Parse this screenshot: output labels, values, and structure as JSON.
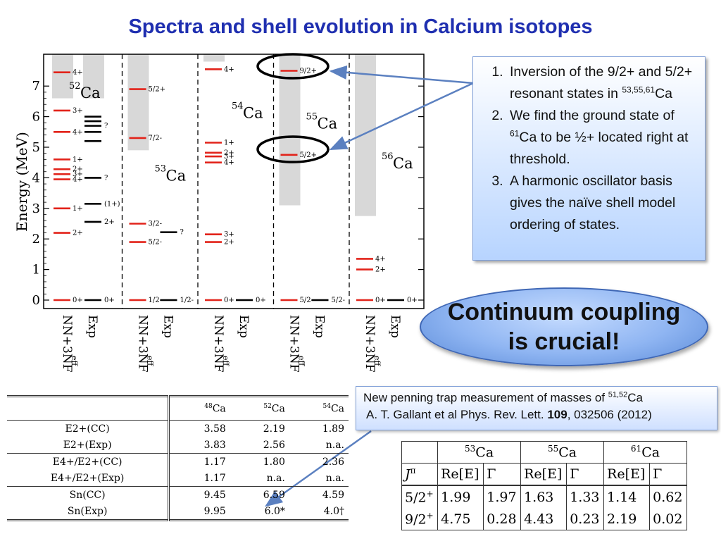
{
  "page_title": "Spectra and shell evolution in Calcium isotopes",
  "chart_data": {
    "type": "level-scheme",
    "ylabel": "Energy (MeV)",
    "ylim": [
      0,
      7.8
    ],
    "yticks": [
      "0",
      "1",
      "2",
      "3",
      "4",
      "5",
      "6",
      "7"
    ],
    "method_labels": [
      "NN+3NF",
      "eff",
      "Exp"
    ],
    "panels": [
      {
        "nucleus_mass": "52",
        "nucleus_symbol": "Ca",
        "label_energy": 6.7,
        "continuum": {
          "theory": 6.6,
          "exp": 6.6
        },
        "theory": [
          {
            "E": 0,
            "label": "0+"
          },
          {
            "E": 2.2,
            "label": "2+"
          },
          {
            "E": 3.0,
            "label": "1+"
          },
          {
            "E": 3.95,
            "label": "4+"
          },
          {
            "E": 4.12,
            "label": "3+"
          },
          {
            "E": 4.28,
            "label": "2+"
          },
          {
            "E": 4.6,
            "label": "1+"
          },
          {
            "E": 5.5,
            "label": "4+"
          },
          {
            "E": 6.2,
            "label": "3+"
          },
          {
            "E": 7.45,
            "label": "4+"
          }
        ],
        "exp": [
          {
            "E": 0,
            "label": "0+"
          },
          {
            "E": 2.56,
            "label": "2+"
          },
          {
            "E": 3.15,
            "label": "(1+)"
          },
          {
            "E": 4.0,
            "label": "?"
          },
          {
            "E": 5.2,
            "label": ""
          },
          {
            "E": 5.5,
            "label": ""
          },
          {
            "E": 5.7,
            "label": "?"
          },
          {
            "E": 5.85,
            "label": ""
          },
          {
            "E": 6.0,
            "label": ""
          }
        ]
      },
      {
        "nucleus_mass": "53",
        "nucleus_symbol": "Ca",
        "label_energy": 4.0,
        "continuum": {
          "theory": 4.9
        },
        "theory": [
          {
            "E": 0,
            "label": "1/2-"
          },
          {
            "E": 1.9,
            "label": "5/2-"
          },
          {
            "E": 2.5,
            "label": "3/2-"
          },
          {
            "E": 5.3,
            "label": "7/2-"
          },
          {
            "E": 6.9,
            "label": "5/2+"
          }
        ],
        "exp": [
          {
            "E": 0,
            "label": "1/2-"
          },
          {
            "E": 2.22,
            "label": "?"
          }
        ]
      },
      {
        "nucleus_mass": "54",
        "nucleus_symbol": "Ca",
        "label_energy": 6.05,
        "continuum": {
          "theory": 7.8
        },
        "theory": [
          {
            "E": 0,
            "label": "0+"
          },
          {
            "E": 1.9,
            "label": "2+"
          },
          {
            "E": 2.15,
            "label": "3+"
          },
          {
            "E": 4.5,
            "label": "4+"
          },
          {
            "E": 4.7,
            "label": "3+"
          },
          {
            "E": 4.82,
            "label": "2+"
          },
          {
            "E": 5.15,
            "label": "1+"
          },
          {
            "E": 7.55,
            "label": "4+"
          }
        ],
        "exp": [
          {
            "E": 0,
            "label": "0+"
          }
        ]
      },
      {
        "nucleus_mass": "55",
        "nucleus_symbol": "Ca",
        "label_energy": 5.7,
        "continuum": {
          "theory": 3.1
        },
        "theory": [
          {
            "E": 0,
            "label": "5/2-"
          },
          {
            "E": 4.75,
            "label": "5/2+"
          },
          {
            "E": 7.5,
            "label": "9/2+"
          }
        ],
        "exp": [
          {
            "E": 0,
            "label": "5/2-"
          }
        ]
      },
      {
        "nucleus_mass": "56",
        "nucleus_symbol": "Ca",
        "label_energy": 4.4,
        "continuum": {
          "theory": 2.75
        },
        "theory": [
          {
            "E": 0,
            "label": "0+"
          },
          {
            "E": 1.0,
            "label": "2+"
          },
          {
            "E": 1.35,
            "label": "4+"
          }
        ],
        "exp": [
          {
            "E": 0,
            "label": "0+"
          }
        ]
      }
    ]
  },
  "callout": {
    "items": [
      {
        "num": "1.",
        "pre": "Inversion of the 9/2+ and 5/2+ resonant states in ",
        "sup": "53,55,61",
        "post": "Ca"
      },
      {
        "num": "2.",
        "pre": " We find the ground state of ",
        "sup": "61",
        "post": "Ca to be ½+ located right at threshold."
      },
      {
        "num": "3.",
        "pre": "A harmonic oscillator basis gives the naïve shell model ordering of states.",
        "sup": "",
        "post": ""
      }
    ]
  },
  "banner": {
    "line1": "Continuum coupling",
    "line2": "is crucial!"
  },
  "reference": {
    "line1_pre": "New penning trap measurement of masses of ",
    "line1_sup": "51,52",
    "line1_post": "Ca",
    "line2_pre": "A. T. Gallant et al Phys. Rev. Lett. ",
    "line2_bold": "109",
    "line2_post": ", 032506 (2012)"
  },
  "table_observables": {
    "columns": [
      {
        "mass": "48",
        "sym": "Ca"
      },
      {
        "mass": "52",
        "sym": "Ca"
      },
      {
        "mass": "54",
        "sym": "Ca"
      }
    ],
    "rows": [
      {
        "label": "E2+(CC)",
        "values": [
          "3.58",
          "2.19",
          "1.89"
        ]
      },
      {
        "label": "E2+(Exp)",
        "values": [
          "3.83",
          "2.56",
          "n.a."
        ]
      },
      {
        "label": "E4+/E2+(CC)",
        "values": [
          "1.17",
          "1.80",
          "2.36"
        ]
      },
      {
        "label": "E4+/E2+(Exp)",
        "values": [
          "1.17",
          "n.a.",
          "n.a."
        ]
      },
      {
        "label": "Sn(CC)",
        "values": [
          "9.45",
          "6.59",
          "4.59"
        ]
      },
      {
        "label": "Sn(Exp)",
        "values": [
          "9.95",
          "6.0*",
          "4.0†"
        ]
      }
    ]
  },
  "table_resonances": {
    "nuclei": [
      {
        "mass": "53",
        "sym": "Ca"
      },
      {
        "mass": "55",
        "sym": "Ca"
      },
      {
        "mass": "61",
        "sym": "Ca"
      }
    ],
    "jpi_header": "J",
    "jpi_sup": "π",
    "re_header": "Re[E]",
    "gamma_header": "Γ",
    "rows": [
      {
        "state": "5/2",
        "parity": "+",
        "values": [
          "1.99",
          "1.97",
          "1.63",
          "1.33",
          "1.14",
          "0.62"
        ]
      },
      {
        "state": "9/2",
        "parity": "+",
        "values": [
          "4.75",
          "0.28",
          "4.43",
          "0.23",
          "2.19",
          "0.02"
        ]
      }
    ]
  }
}
